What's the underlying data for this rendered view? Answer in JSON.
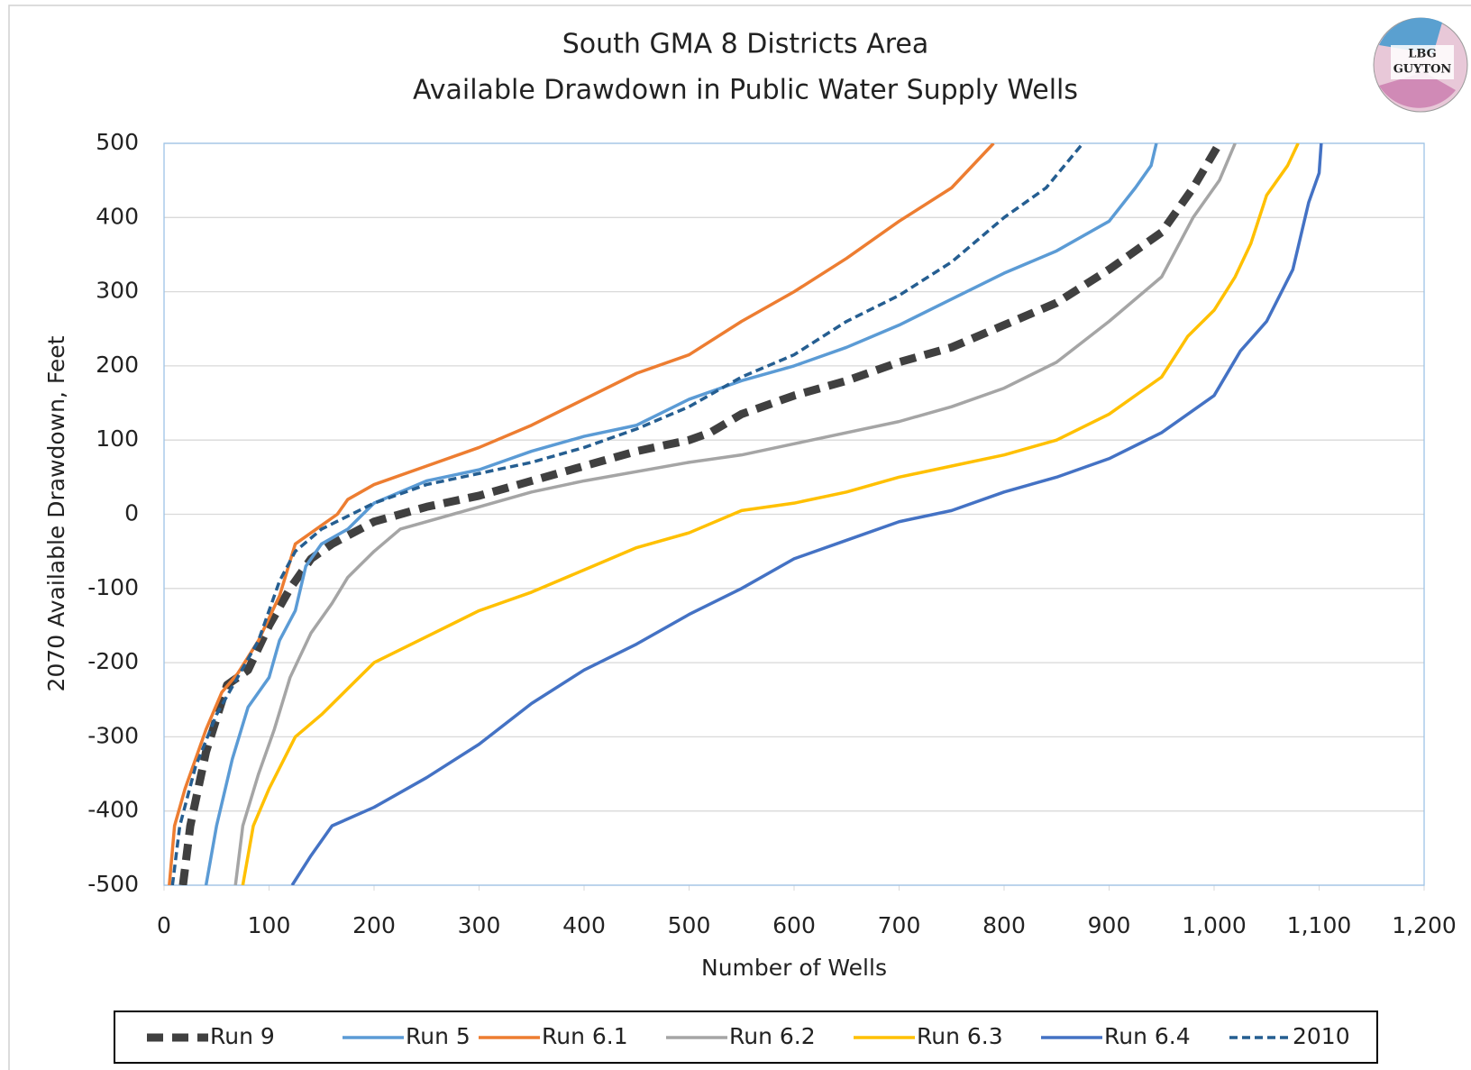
{
  "chart_data": {
    "type": "line",
    "title": [
      "South GMA 8 Districts Area",
      "Available Drawdown in Public Water Supply Wells"
    ],
    "xlabel": "Number of Wells",
    "ylabel": "2070 Available Drawdown, Feet",
    "xlim": [
      0,
      1200
    ],
    "ylim": [
      -500,
      500
    ],
    "xticks": [
      0,
      100,
      200,
      300,
      400,
      500,
      600,
      700,
      800,
      900,
      {
        "value": 1000,
        "label": "1,000"
      },
      {
        "value": 1100,
        "label": "1,100"
      },
      {
        "value": 1200,
        "label": "1,200"
      }
    ],
    "yticks": [
      -500,
      -400,
      -300,
      -200,
      -100,
      0,
      100,
      200,
      300,
      400,
      500
    ],
    "grid": true,
    "legend": "bottom",
    "series": [
      {
        "name": "Run 9",
        "color": "#404040",
        "width": 9,
        "dash": "18 10",
        "x": [
          18,
          25,
          40,
          60,
          80,
          100,
          120,
          140,
          160,
          200,
          250,
          300,
          350,
          400,
          450,
          500,
          520,
          550,
          600,
          650,
          700,
          750,
          800,
          850,
          900,
          950,
          980,
          1005
        ],
        "values": [
          -500,
          -420,
          -320,
          -230,
          -210,
          -150,
          -100,
          -60,
          -40,
          -10,
          10,
          25,
          45,
          65,
          85,
          100,
          110,
          135,
          160,
          180,
          205,
          225,
          255,
          285,
          330,
          380,
          440,
          500
        ]
      },
      {
        "name": "Run 5",
        "color": "#5b9bd5",
        "width": 3.5,
        "dash": "",
        "x": [
          40,
          50,
          65,
          80,
          100,
          110,
          125,
          135,
          150,
          175,
          200,
          250,
          300,
          350,
          400,
          450,
          500,
          550,
          600,
          650,
          700,
          750,
          800,
          850,
          900,
          925,
          940,
          945
        ],
        "values": [
          -500,
          -420,
          -330,
          -260,
          -220,
          -170,
          -130,
          -70,
          -40,
          -20,
          15,
          45,
          60,
          85,
          105,
          120,
          155,
          180,
          200,
          225,
          255,
          290,
          325,
          355,
          395,
          440,
          470,
          500
        ]
      },
      {
        "name": "Run 6.1",
        "color": "#ed7d31",
        "width": 3.5,
        "dash": "",
        "x": [
          5,
          10,
          20,
          40,
          55,
          70,
          90,
          110,
          125,
          150,
          165,
          175,
          200,
          250,
          300,
          350,
          400,
          450,
          500,
          550,
          600,
          650,
          700,
          750,
          790
        ],
        "values": [
          -500,
          -420,
          -370,
          -290,
          -240,
          -215,
          -170,
          -110,
          -40,
          -15,
          0,
          20,
          40,
          65,
          90,
          120,
          155,
          190,
          215,
          260,
          300,
          345,
          395,
          440,
          500
        ]
      },
      {
        "name": "Run 6.2",
        "color": "#a5a5a5",
        "width": 3.5,
        "dash": "",
        "x": [
          68,
          75,
          90,
          105,
          120,
          140,
          160,
          175,
          200,
          225,
          300,
          350,
          400,
          500,
          550,
          600,
          700,
          750,
          800,
          850,
          900,
          950,
          980,
          1005,
          1020
        ],
        "values": [
          -500,
          -420,
          -350,
          -290,
          -220,
          -160,
          -120,
          -85,
          -50,
          -20,
          10,
          30,
          45,
          70,
          80,
          95,
          125,
          145,
          170,
          205,
          260,
          320,
          400,
          450,
          500
        ]
      },
      {
        "name": "Run 6.3",
        "color": "#ffc000",
        "width": 3.5,
        "dash": "",
        "x": [
          75,
          85,
          100,
          125,
          150,
          175,
          200,
          250,
          300,
          350,
          400,
          450,
          500,
          550,
          600,
          650,
          700,
          750,
          800,
          850,
          900,
          950,
          975,
          1000,
          1020,
          1035,
          1050,
          1070,
          1080
        ],
        "values": [
          -500,
          -420,
          -370,
          -300,
          -270,
          -235,
          -200,
          -165,
          -130,
          -105,
          -75,
          -45,
          -25,
          5,
          15,
          30,
          50,
          65,
          80,
          100,
          135,
          185,
          240,
          275,
          320,
          365,
          430,
          470,
          500
        ]
      },
      {
        "name": "Run 6.4",
        "color": "#4472c4",
        "width": 3.5,
        "dash": "",
        "x": [
          122,
          140,
          160,
          200,
          250,
          300,
          350,
          400,
          450,
          500,
          550,
          600,
          650,
          700,
          750,
          800,
          850,
          900,
          950,
          1000,
          1025,
          1050,
          1075,
          1090,
          1100,
          1102
        ],
        "values": [
          -500,
          -460,
          -420,
          -395,
          -355,
          -310,
          -255,
          -210,
          -175,
          -135,
          -100,
          -60,
          -35,
          -10,
          5,
          30,
          50,
          75,
          110,
          160,
          220,
          260,
          330,
          420,
          460,
          500
        ]
      },
      {
        "name": "2010",
        "color": "#255e91",
        "width": 3.5,
        "dash": "9 5",
        "x": [
          8,
          15,
          30,
          50,
          70,
          90,
          110,
          125,
          150,
          200,
          250,
          300,
          350,
          400,
          450,
          500,
          550,
          600,
          650,
          700,
          750,
          800,
          840,
          875
        ],
        "values": [
          -500,
          -420,
          -340,
          -270,
          -220,
          -170,
          -90,
          -50,
          -20,
          15,
          40,
          55,
          70,
          90,
          115,
          145,
          185,
          215,
          260,
          295,
          340,
          400,
          440,
          500
        ]
      }
    ]
  },
  "logo": {
    "lines": [
      "LBG",
      "GUYTON"
    ]
  }
}
